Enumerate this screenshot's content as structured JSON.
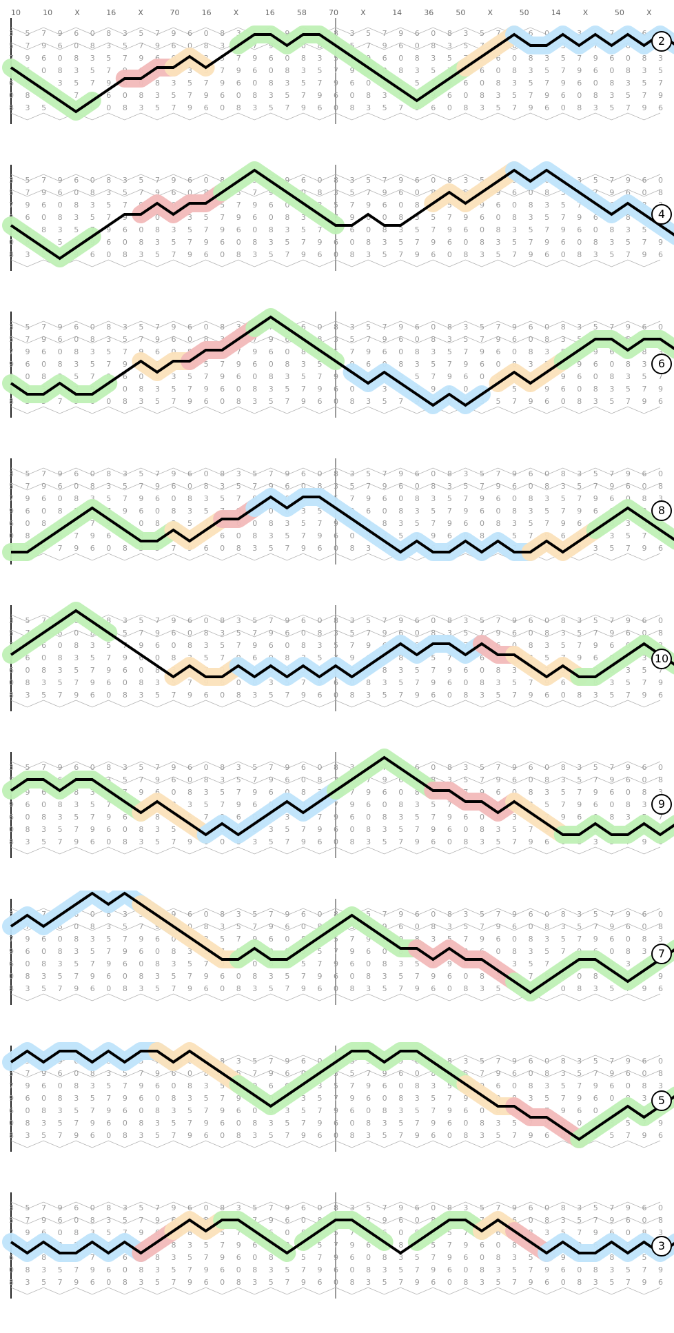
{
  "panels": [
    {
      "id": "2",
      "badge": "2",
      "top_labels": [
        "10",
        "10",
        "X",
        "16",
        "X",
        "70",
        "16",
        "X",
        "16",
        "58",
        "70",
        "X",
        "14",
        "36",
        "50",
        "X",
        "50",
        "14",
        "X",
        "50",
        "X"
      ],
      "path": [
        4,
        3,
        2,
        1,
        0,
        1,
        2,
        3,
        3,
        4,
        4,
        5,
        4,
        5,
        6,
        7,
        7,
        6,
        7,
        7,
        6,
        5,
        4,
        3,
        2,
        1,
        2,
        3,
        4,
        5,
        6,
        7,
        6,
        6,
        7,
        6,
        7,
        6,
        7,
        6,
        7,
        6
      ],
      "highlights": [
        {
          "start": 0,
          "end": 5,
          "color": "#bff0b5"
        },
        {
          "start": 7,
          "end": 10,
          "color": "#f2b9b9"
        },
        {
          "start": 10,
          "end": 12,
          "color": "#fbe1bb"
        },
        {
          "start": 14,
          "end": 22,
          "color": "#bff0b5"
        },
        {
          "start": 22,
          "end": 28,
          "color": "#bff0b5"
        },
        {
          "start": 28,
          "end": 31,
          "color": "#fbe1bb"
        },
        {
          "start": 31,
          "end": 41,
          "color": "#bfe4fb"
        }
      ]
    },
    {
      "id": "4",
      "badge": "4",
      "top_labels": [],
      "path": [
        3,
        2,
        1,
        0,
        1,
        2,
        3,
        4,
        4,
        5,
        4,
        5,
        5,
        6,
        7,
        8,
        7,
        6,
        5,
        4,
        3,
        3,
        4,
        3,
        3,
        4,
        5,
        6,
        5,
        6,
        7,
        8,
        7,
        8,
        7,
        6,
        5,
        4,
        5,
        4,
        3,
        2
      ],
      "highlights": [
        {
          "start": 0,
          "end": 5,
          "color": "#bff0b5"
        },
        {
          "start": 8,
          "end": 13,
          "color": "#f2b9b9"
        },
        {
          "start": 13,
          "end": 20,
          "color": "#bff0b5"
        },
        {
          "start": 26,
          "end": 31,
          "color": "#fbe1bb"
        },
        {
          "start": 31,
          "end": 41,
          "color": "#bfe4fb"
        }
      ]
    },
    {
      "id": "6",
      "badge": "6",
      "top_labels": [],
      "path": [
        2,
        1,
        1,
        2,
        1,
        1,
        2,
        3,
        4,
        3,
        4,
        4,
        5,
        5,
        6,
        7,
        8,
        7,
        6,
        5,
        4,
        3,
        2,
        3,
        2,
        1,
        0,
        1,
        0,
        1,
        2,
        3,
        2,
        3,
        4,
        5,
        6,
        6,
        5,
        6,
        6,
        5
      ],
      "highlights": [
        {
          "start": 0,
          "end": 6,
          "color": "#bff0b5"
        },
        {
          "start": 8,
          "end": 11,
          "color": "#fbe1bb"
        },
        {
          "start": 11,
          "end": 15,
          "color": "#f2b9b9"
        },
        {
          "start": 15,
          "end": 20,
          "color": "#bff0b5"
        },
        {
          "start": 21,
          "end": 29,
          "color": "#bfe4fb"
        },
        {
          "start": 30,
          "end": 34,
          "color": "#fbe1bb"
        },
        {
          "start": 34,
          "end": 41,
          "color": "#bff0b5"
        }
      ]
    },
    {
      "id": "8",
      "badge": "8",
      "top_labels": [],
      "path": [
        0,
        0,
        1,
        2,
        3,
        4,
        3,
        2,
        1,
        1,
        2,
        1,
        2,
        3,
        3,
        4,
        5,
        4,
        5,
        5,
        4,
        3,
        2,
        1,
        0,
        1,
        0,
        0,
        1,
        0,
        1,
        0,
        0,
        1,
        0,
        1,
        2,
        3,
        4,
        3,
        2,
        1
      ],
      "highlights": [
        {
          "start": 0,
          "end": 7,
          "color": "#bff0b5"
        },
        {
          "start": 7,
          "end": 10,
          "color": "#bff0b5"
        },
        {
          "start": 10,
          "end": 13,
          "color": "#fbe1bb"
        },
        {
          "start": 13,
          "end": 15,
          "color": "#f2b9b9"
        },
        {
          "start": 15,
          "end": 21,
          "color": "#bfe4fb"
        },
        {
          "start": 21,
          "end": 32,
          "color": "#bfe4fb"
        },
        {
          "start": 32,
          "end": 36,
          "color": "#fbe1bb"
        },
        {
          "start": 36,
          "end": 41,
          "color": "#bff0b5"
        }
      ]
    },
    {
      "id": "10",
      "badge": "10",
      "top_labels": [],
      "path": [
        4,
        5,
        6,
        7,
        8,
        7,
        6,
        5,
        4,
        3,
        2,
        3,
        2,
        2,
        3,
        2,
        3,
        2,
        3,
        2,
        3,
        2,
        3,
        4,
        5,
        4,
        5,
        5,
        4,
        5,
        4,
        4,
        3,
        2,
        3,
        2,
        2,
        3,
        4,
        5,
        4,
        3
      ],
      "highlights": [
        {
          "start": 0,
          "end": 6,
          "color": "#bff0b5"
        },
        {
          "start": 10,
          "end": 14,
          "color": "#fbe1bb"
        },
        {
          "start": 14,
          "end": 22,
          "color": "#bfe4fb"
        },
        {
          "start": 22,
          "end": 29,
          "color": "#bfe4fb"
        },
        {
          "start": 29,
          "end": 31,
          "color": "#f2b9b9"
        },
        {
          "start": 31,
          "end": 35,
          "color": "#fbe1bb"
        },
        {
          "start": 35,
          "end": 41,
          "color": "#bff0b5"
        }
      ]
    },
    {
      "id": "9",
      "badge": "9",
      "top_labels": [],
      "path": [
        5,
        6,
        6,
        5,
        6,
        6,
        5,
        4,
        3,
        4,
        3,
        2,
        1,
        2,
        1,
        2,
        3,
        4,
        3,
        4,
        5,
        6,
        7,
        8,
        7,
        6,
        5,
        5,
        4,
        4,
        3,
        4,
        3,
        2,
        1,
        1,
        2,
        1,
        1,
        2,
        1,
        2
      ],
      "highlights": [
        {
          "start": 0,
          "end": 8,
          "color": "#bff0b5"
        },
        {
          "start": 8,
          "end": 12,
          "color": "#fbe1bb"
        },
        {
          "start": 12,
          "end": 20,
          "color": "#bfe4fb"
        },
        {
          "start": 20,
          "end": 26,
          "color": "#bff0b5"
        },
        {
          "start": 26,
          "end": 31,
          "color": "#f2b9b9"
        },
        {
          "start": 31,
          "end": 34,
          "color": "#fbe1bb"
        },
        {
          "start": 34,
          "end": 41,
          "color": "#bff0b5"
        }
      ]
    },
    {
      "id": "7",
      "badge": "7",
      "top_labels": [],
      "path": [
        6,
        7,
        6,
        7,
        8,
        9,
        8,
        9,
        8,
        7,
        6,
        5,
        4,
        3,
        3,
        4,
        3,
        3,
        4,
        5,
        6,
        7,
        6,
        5,
        4,
        4,
        3,
        4,
        3,
        3,
        2,
        1,
        0,
        1,
        2,
        3,
        3,
        2,
        1,
        2,
        3,
        4
      ],
      "highlights": [
        {
          "start": 0,
          "end": 10,
          "color": "#bfe4fb"
        },
        {
          "start": 8,
          "end": 14,
          "color": "#fbe1bb"
        },
        {
          "start": 14,
          "end": 20,
          "color": "#bff0b5"
        },
        {
          "start": 20,
          "end": 25,
          "color": "#bff0b5"
        },
        {
          "start": 25,
          "end": 31,
          "color": "#f2b9b9"
        },
        {
          "start": 31,
          "end": 41,
          "color": "#bff0b5"
        }
      ]
    },
    {
      "id": "5",
      "badge": "5",
      "top_labels": [],
      "path": [
        7,
        8,
        7,
        8,
        8,
        7,
        8,
        7,
        8,
        8,
        7,
        8,
        7,
        6,
        5,
        4,
        3,
        4,
        5,
        6,
        7,
        8,
        8,
        7,
        8,
        8,
        7,
        6,
        5,
        4,
        3,
        3,
        2,
        2,
        1,
        0,
        1,
        2,
        3,
        2,
        3,
        4
      ],
      "highlights": [
        {
          "start": 0,
          "end": 10,
          "color": "#bfe4fb"
        },
        {
          "start": 9,
          "end": 14,
          "color": "#fbe1bb"
        },
        {
          "start": 14,
          "end": 22,
          "color": "#bff0b5"
        },
        {
          "start": 22,
          "end": 28,
          "color": "#bff0b5"
        },
        {
          "start": 28,
          "end": 31,
          "color": "#fbe1bb"
        },
        {
          "start": 31,
          "end": 35,
          "color": "#f2b9b9"
        },
        {
          "start": 35,
          "end": 41,
          "color": "#bff0b5"
        }
      ]
    },
    {
      "id": "3",
      "badge": "3",
      "top_labels": [],
      "path": [
        4,
        3,
        4,
        3,
        3,
        4,
        3,
        4,
        3,
        4,
        5,
        6,
        5,
        6,
        6,
        5,
        4,
        3,
        4,
        5,
        6,
        6,
        5,
        4,
        3,
        4,
        5,
        6,
        6,
        5,
        6,
        5,
        4,
        3,
        4,
        3,
        3,
        4,
        3,
        4,
        3,
        4
      ],
      "highlights": [
        {
          "start": 0,
          "end": 8,
          "color": "#bfe4fb"
        },
        {
          "start": 8,
          "end": 10,
          "color": "#f2b9b9"
        },
        {
          "start": 10,
          "end": 13,
          "color": "#fbe1bb"
        },
        {
          "start": 13,
          "end": 17,
          "color": "#bff0b5"
        },
        {
          "start": 18,
          "end": 23,
          "color": "#bff0b5"
        },
        {
          "start": 25,
          "end": 29,
          "color": "#bff0b5"
        },
        {
          "start": 29,
          "end": 31,
          "color": "#fbe1bb"
        },
        {
          "start": 31,
          "end": 33,
          "color": "#f2b9b9"
        },
        {
          "start": 33,
          "end": 41,
          "color": "#bfe4fb"
        }
      ]
    }
  ]
}
